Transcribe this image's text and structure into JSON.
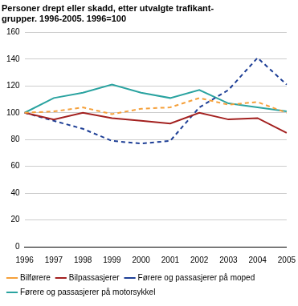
{
  "chart_data": {
    "type": "line",
    "title": [
      "Personer drept eller skadd, etter utvalgte trafikant-",
      "grupper. 1996-2005. 1996=100"
    ],
    "categories": [
      "1996",
      "1997",
      "1998",
      "1999",
      "2000",
      "2001",
      "2002",
      "2003",
      "2004",
      "2005"
    ],
    "series": [
      {
        "name": "Bilførere",
        "color": "#f5a03a",
        "line_style": "dashed",
        "values": [
          100,
          101,
          104,
          99,
          103,
          104,
          111,
          106,
          108,
          100
        ]
      },
      {
        "name": "Bilpassasjerer",
        "color": "#a3201f",
        "line_style": "solid",
        "values": [
          100,
          95,
          100,
          96,
          94,
          92,
          100,
          95,
          96,
          85
        ]
      },
      {
        "name": "Førere og passasjerer på moped",
        "color": "#1e3f96",
        "line_style": "dashed",
        "values": [
          100,
          94,
          88,
          79,
          77,
          79,
          104,
          117,
          141,
          121
        ]
      },
      {
        "name": "Førere og passasjerer på motorsykkel",
        "color": "#2aa3a0",
        "line_style": "solid",
        "values": [
          100,
          111,
          115,
          121,
          115,
          111,
          117,
          107,
          104,
          101
        ]
      }
    ],
    "ylim": [
      0,
      160
    ],
    "yticks": [
      0,
      20,
      40,
      60,
      80,
      100,
      120,
      140,
      160
    ],
    "grid": true,
    "legend": "bottom"
  }
}
